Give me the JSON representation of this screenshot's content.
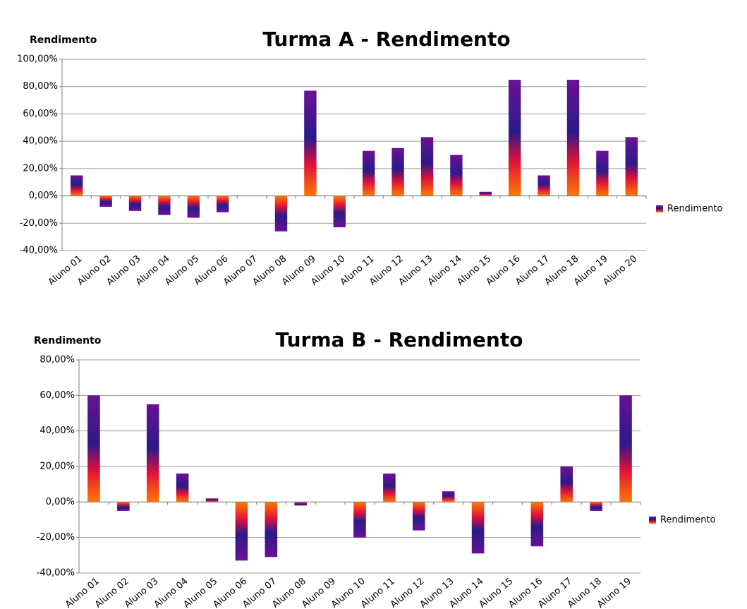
{
  "chart_data": [
    {
      "type": "bar",
      "title": "Turma A - Rendimento",
      "y_label": "Rendimento",
      "categories": [
        "Aluno 01",
        "Aluno 02",
        "Aluno 03",
        "Aluno 04",
        "Aluno 05",
        "Aluno 06",
        "Aluno 07",
        "Aluno 08",
        "Aluno 09",
        "Aluno 10",
        "Aluno 11",
        "Aluno 12",
        "Aluno 13",
        "Aluno 14",
        "Aluno 15",
        "Aluno 16",
        "Aluno 17",
        "Aluno 18",
        "Aluno 19",
        "Aluno 20"
      ],
      "series": [
        {
          "name": "Rendimento",
          "color": "#6a1196",
          "values": [
            15,
            -8,
            -11,
            -14,
            -16,
            -12,
            0,
            -26,
            77,
            -23,
            33,
            35,
            43,
            30,
            3,
            85,
            15,
            85,
            33,
            43
          ]
        }
      ],
      "ylim": [
        -40,
        100
      ],
      "yticks": [
        {
          "value": -40,
          "label": "-40,00%"
        },
        {
          "value": -20,
          "label": "-20,00%"
        },
        {
          "value": 0,
          "label": "0,00%"
        },
        {
          "value": 20,
          "label": "20,00%"
        },
        {
          "value": 40,
          "label": "40,00%"
        },
        {
          "value": 60,
          "label": "60,00%"
        },
        {
          "value": 80,
          "label": "80,00%"
        },
        {
          "value": 100,
          "label": "100,00%"
        }
      ],
      "grid": true,
      "legend": "right"
    },
    {
      "type": "bar",
      "title": "Turma B - Rendimento",
      "y_label": "Rendimento",
      "categories": [
        "Aluno 01",
        "Aluno 02",
        "Aluno 03",
        "Aluno 04",
        "Aluno 05",
        "Aluno 06",
        "Aluno 07",
        "Aluno 08",
        "Aluno 09",
        "Aluno 10",
        "Aluno 11",
        "Aluno 12",
        "Aluno 13",
        "Aluno 14",
        "Aluno 15",
        "Aluno 16",
        "Aluno 17",
        "Aluno 18",
        "Aluno 19"
      ],
      "series": [
        {
          "name": "Rendimento",
          "color": "#6a1196",
          "values": [
            60,
            -5,
            55,
            16,
            2,
            -33,
            -31,
            -2,
            0,
            -20,
            16,
            -16,
            6,
            -29,
            0,
            -25,
            20,
            -5,
            60
          ]
        }
      ],
      "ylim": [
        -40,
        80
      ],
      "yticks": [
        {
          "value": -40,
          "label": "-40,00%"
        },
        {
          "value": -20,
          "label": "-20,00%"
        },
        {
          "value": 0,
          "label": "0,00%"
        },
        {
          "value": 20,
          "label": "20,00%"
        },
        {
          "value": 40,
          "label": "40,00%"
        },
        {
          "value": 60,
          "label": "60,00%"
        },
        {
          "value": 80,
          "label": "80,00%"
        }
      ],
      "grid": true,
      "legend": "right"
    }
  ]
}
